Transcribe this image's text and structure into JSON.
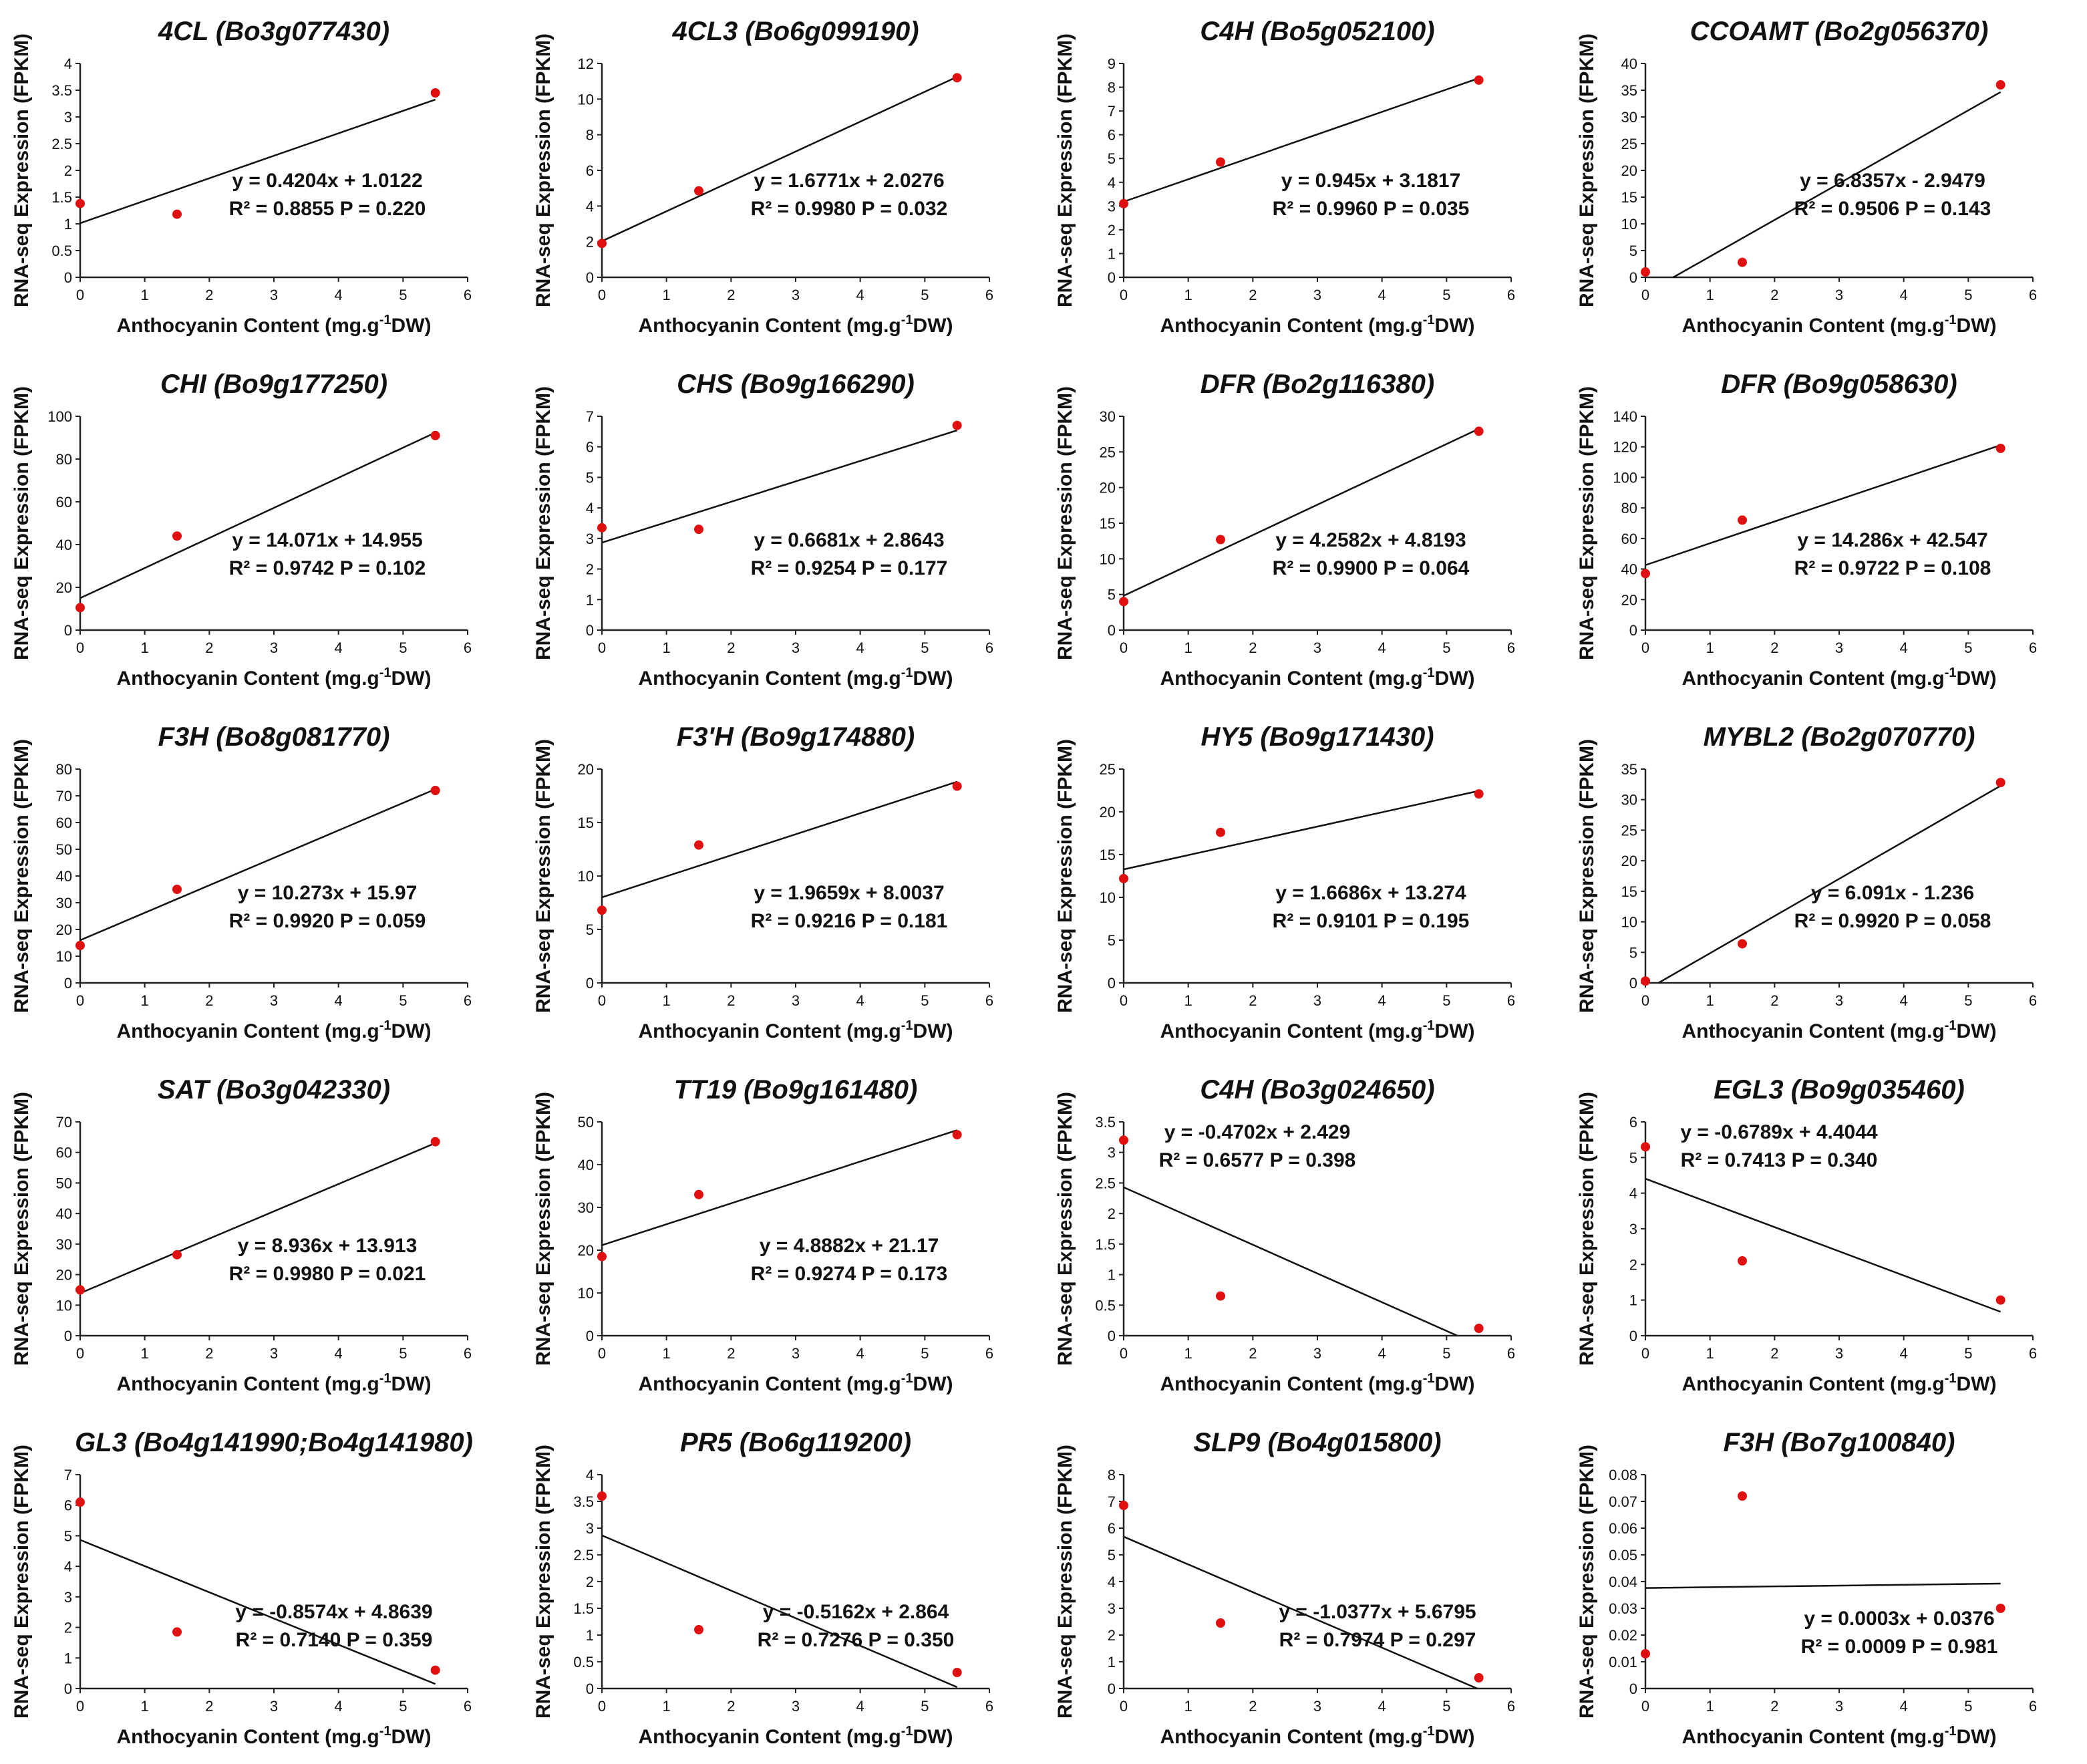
{
  "chart_data": [
    {
      "type": "scatter",
      "title": "4CL (Bo3g077430)",
      "ylabel": "RNA-seq Expression (FPKM)",
      "xlabel": "Anthocyanin Content (mg.g-1DW)",
      "xlim": [
        0,
        6
      ],
      "ylim": [
        0,
        4
      ],
      "yticks": [
        "0",
        "0.5",
        "1",
        "1.5",
        "2",
        "2.5",
        "3",
        "3.5",
        "4"
      ],
      "xticks": [
        "0",
        "1",
        "2",
        "3",
        "4",
        "5",
        "6"
      ],
      "x": [
        0,
        1.5,
        5.5
      ],
      "y": [
        1.38,
        1.18,
        3.45
      ],
      "slope": 0.4204,
      "intercept": 1.0122,
      "equation": "y = 0.4204x + 1.0122",
      "stats": "R² = 0.8855 P = 0.220"
    },
    {
      "type": "scatter",
      "title": "4CL3 (Bo6g099190)",
      "ylabel": "RNA-seq Expression (FPKM)",
      "xlabel": "Anthocyanin Content (mg.g-1DW)",
      "xlim": [
        0,
        6
      ],
      "ylim": [
        0,
        12
      ],
      "yticks": [
        "0",
        "2",
        "4",
        "6",
        "8",
        "10",
        "12"
      ],
      "xticks": [
        "0",
        "1",
        "2",
        "3",
        "4",
        "5",
        "6"
      ],
      "x": [
        0,
        1.5,
        5.5
      ],
      "y": [
        1.9,
        4.85,
        11.2
      ],
      "slope": 1.6771,
      "intercept": 2.0276,
      "equation": "y = 1.6771x + 2.0276",
      "stats": "R² = 0.9980 P = 0.032"
    },
    {
      "type": "scatter",
      "title": "C4H (Bo5g052100)",
      "ylabel": "RNA-seq Expression (FPKM)",
      "xlabel": "Anthocyanin Content (mg.g-1DW)",
      "xlim": [
        0,
        6
      ],
      "ylim": [
        0,
        9
      ],
      "yticks": [
        "0",
        "1",
        "2",
        "3",
        "4",
        "5",
        "6",
        "7",
        "8",
        "9"
      ],
      "xticks": [
        "0",
        "1",
        "2",
        "3",
        "4",
        "5",
        "6"
      ],
      "x": [
        0,
        1.5,
        5.5
      ],
      "y": [
        3.1,
        4.85,
        8.3
      ],
      "slope": 0.945,
      "intercept": 3.1817,
      "equation": "y = 0.945x + 3.1817",
      "stats": "R² = 0.9960 P = 0.035"
    },
    {
      "type": "scatter",
      "title": "CCOAMT (Bo2g056370)",
      "ylabel": "RNA-seq Expression (FPKM)",
      "xlabel": "Anthocyanin Content (mg.g-1DW)",
      "xlim": [
        0,
        6
      ],
      "ylim": [
        0,
        40
      ],
      "yticks": [
        "0",
        "5",
        "10",
        "15",
        "20",
        "25",
        "30",
        "35",
        "40"
      ],
      "xticks": [
        "0",
        "1",
        "2",
        "3",
        "4",
        "5",
        "6"
      ],
      "x": [
        0,
        1.5,
        5.5
      ],
      "y": [
        1,
        2.8,
        36
      ],
      "slope": 6.8357,
      "intercept": -2.9479,
      "equation": "y = 6.8357x - 2.9479",
      "stats": "R² = 0.9506 P = 0.143"
    },
    {
      "type": "scatter",
      "title": "CHI (Bo9g177250)",
      "ylabel": "RNA-seq Expression (FPKM)",
      "xlabel": "Anthocyanin Content (mg.g-1DW)",
      "xlim": [
        0,
        6
      ],
      "ylim": [
        0,
        100
      ],
      "yticks": [
        "0",
        "20",
        "40",
        "60",
        "80",
        "100"
      ],
      "xticks": [
        "0",
        "1",
        "2",
        "3",
        "4",
        "5",
        "6"
      ],
      "x": [
        0,
        1.5,
        5.5
      ],
      "y": [
        10.5,
        44,
        91
      ],
      "slope": 14.071,
      "intercept": 14.955,
      "equation": "y = 14.071x + 14.955",
      "stats": "R² = 0.9742 P = 0.102"
    },
    {
      "type": "scatter",
      "title": "CHS (Bo9g166290)",
      "ylabel": "RNA-seq Expression (FPKM)",
      "xlabel": "Anthocyanin Content (mg.g-1DW)",
      "xlim": [
        0,
        6
      ],
      "ylim": [
        0,
        7
      ],
      "yticks": [
        "0",
        "1",
        "2",
        "3",
        "4",
        "5",
        "6",
        "7"
      ],
      "xticks": [
        "0",
        "1",
        "2",
        "3",
        "4",
        "5",
        "6"
      ],
      "x": [
        0,
        1.5,
        5.5
      ],
      "y": [
        3.35,
        3.3,
        6.7
      ],
      "slope": 0.6681,
      "intercept": 2.8643,
      "equation": "y = 0.6681x + 2.8643",
      "stats": "R² = 0.9254 P = 0.177"
    },
    {
      "type": "scatter",
      "title": "DFR (Bo2g116380)",
      "ylabel": "RNA-seq Expression (FPKM)",
      "xlabel": "Anthocyanin Content (mg.g-1DW)",
      "xlim": [
        0,
        6
      ],
      "ylim": [
        0,
        30
      ],
      "yticks": [
        "0",
        "5",
        "10",
        "15",
        "20",
        "25",
        "30"
      ],
      "xticks": [
        "0",
        "1",
        "2",
        "3",
        "4",
        "5",
        "6"
      ],
      "x": [
        0,
        1.5,
        5.5
      ],
      "y": [
        4,
        12.7,
        27.9
      ],
      "slope": 4.2582,
      "intercept": 4.8193,
      "equation": "y = 4.2582x + 4.8193",
      "stats": "R² = 0.9900 P = 0.064"
    },
    {
      "type": "scatter",
      "title": "DFR (Bo9g058630)",
      "ylabel": "RNA-seq Expression (FPKM)",
      "xlabel": "Anthocyanin Content (mg.g-1DW)",
      "xlim": [
        0,
        6
      ],
      "ylim": [
        0,
        140
      ],
      "yticks": [
        "0",
        "20",
        "40",
        "60",
        "80",
        "100",
        "120",
        "140"
      ],
      "xticks": [
        "0",
        "1",
        "2",
        "3",
        "4",
        "5",
        "6"
      ],
      "x": [
        0,
        1.5,
        5.5
      ],
      "y": [
        37,
        72,
        119
      ],
      "slope": 14.286,
      "intercept": 42.547,
      "equation": "y = 14.286x + 42.547",
      "stats": "R² = 0.9722 P = 0.108"
    },
    {
      "type": "scatter",
      "title": "F3H (Bo8g081770)",
      "ylabel": "RNA-seq Expression (FPKM)",
      "xlabel": "Anthocyanin Content (mg.g-1DW)",
      "xlim": [
        0,
        6
      ],
      "ylim": [
        0,
        80
      ],
      "yticks": [
        "0",
        "10",
        "20",
        "30",
        "40",
        "50",
        "60",
        "70",
        "80"
      ],
      "xticks": [
        "0",
        "1",
        "2",
        "3",
        "4",
        "5",
        "6"
      ],
      "x": [
        0,
        1.5,
        5.5
      ],
      "y": [
        14,
        35,
        72
      ],
      "slope": 10.273,
      "intercept": 15.97,
      "equation": "y = 10.273x + 15.97",
      "stats": "R² = 0.9920 P = 0.059"
    },
    {
      "type": "scatter",
      "title": "F3'H (Bo9g174880)",
      "ylabel": "RNA-seq Expression (FPKM)",
      "xlabel": "Anthocyanin Content (mg.g-1DW)",
      "xlim": [
        0,
        6
      ],
      "ylim": [
        0,
        20
      ],
      "yticks": [
        "0",
        "5",
        "10",
        "15",
        "20"
      ],
      "xticks": [
        "0",
        "1",
        "2",
        "3",
        "4",
        "5",
        "6"
      ],
      "x": [
        0,
        1.5,
        5.5
      ],
      "y": [
        6.8,
        12.9,
        18.4
      ],
      "slope": 1.9659,
      "intercept": 8.0037,
      "equation": "y = 1.9659x + 8.0037",
      "stats": "R² = 0.9216 P = 0.181"
    },
    {
      "type": "scatter",
      "title": "HY5 (Bo9g171430)",
      "ylabel": "RNA-seq Expression (FPKM)",
      "xlabel": "Anthocyanin Content (mg.g-1DW)",
      "xlim": [
        0,
        6
      ],
      "ylim": [
        0,
        25
      ],
      "yticks": [
        "0",
        "5",
        "10",
        "15",
        "20",
        "25"
      ],
      "xticks": [
        "0",
        "1",
        "2",
        "3",
        "4",
        "5",
        "6"
      ],
      "x": [
        0,
        1.5,
        5.5
      ],
      "y": [
        12.2,
        17.6,
        22.1
      ],
      "slope": 1.6686,
      "intercept": 13.274,
      "equation": "y = 1.6686x + 13.274",
      "stats": "R² = 0.9101 P = 0.195"
    },
    {
      "type": "scatter",
      "title": "MYBL2 (Bo2g070770)",
      "ylabel": "RNA-seq Expression (FPKM)",
      "xlabel": "Anthocyanin Content (mg.g-1DW)",
      "xlim": [
        0,
        6
      ],
      "ylim": [
        0,
        35
      ],
      "yticks": [
        "0",
        "5",
        "10",
        "15",
        "20",
        "25",
        "30",
        "35"
      ],
      "xticks": [
        "0",
        "1",
        "2",
        "3",
        "4",
        "5",
        "6"
      ],
      "x": [
        0,
        1.5,
        5.5
      ],
      "y": [
        0.3,
        6.4,
        32.8
      ],
      "slope": 6.091,
      "intercept": -1.236,
      "equation": "y = 6.091x - 1.236",
      "stats": "R² = 0.9920 P = 0.058"
    },
    {
      "type": "scatter",
      "title": "SAT (Bo3g042330)",
      "ylabel": "RNA-seq Expression (FPKM)",
      "xlabel": "Anthocyanin Content (mg.g-1DW)",
      "xlim": [
        0,
        6
      ],
      "ylim": [
        0,
        70
      ],
      "yticks": [
        "0",
        "10",
        "20",
        "30",
        "40",
        "50",
        "60",
        "70"
      ],
      "xticks": [
        "0",
        "1",
        "2",
        "3",
        "4",
        "5",
        "6"
      ],
      "x": [
        0,
        1.5,
        5.5
      ],
      "y": [
        15,
        26.5,
        63.5
      ],
      "slope": 8.936,
      "intercept": 13.913,
      "equation": "y = 8.936x + 13.913",
      "stats": "R² = 0.9980 P = 0.021"
    },
    {
      "type": "scatter",
      "title": "TT19 (Bo9g161480)",
      "ylabel": "RNA-seq Expression (FPKM)",
      "xlabel": "Anthocyanin Content (mg.g-1DW)",
      "xlim": [
        0,
        6
      ],
      "ylim": [
        0,
        50
      ],
      "yticks": [
        "0",
        "10",
        "20",
        "30",
        "40",
        "50"
      ],
      "xticks": [
        "0",
        "1",
        "2",
        "3",
        "4",
        "5",
        "6"
      ],
      "x": [
        0,
        1.5,
        5.5
      ],
      "y": [
        18.5,
        33,
        47
      ],
      "slope": 4.8882,
      "intercept": 21.17,
      "equation": "y = 4.8882x + 21.17",
      "stats": "R² = 0.9274 P = 0.173"
    },
    {
      "type": "scatter",
      "title": "C4H (Bo3g024650)",
      "ylabel": "RNA-seq Expression (FPKM)",
      "xlabel": "Anthocyanin Content (mg.g-1DW)",
      "xlim": [
        0,
        6
      ],
      "ylim": [
        0,
        3.5
      ],
      "yticks": [
        "0",
        "0.5",
        "1",
        "1.5",
        "2",
        "2.5",
        "3",
        "3.5"
      ],
      "xticks": [
        "0",
        "1",
        "2",
        "3",
        "4",
        "5",
        "6"
      ],
      "x": [
        0,
        1.5,
        5.5
      ],
      "y": [
        3.2,
        0.65,
        0.12
      ],
      "slope": -0.4702,
      "intercept": 2.429,
      "equation": "y = -0.4702x + 2.429",
      "stats": "R² = 0.6577 P = 0.398"
    },
    {
      "type": "scatter",
      "title": "EGL3 (Bo9g035460)",
      "ylabel": "RNA-seq Expression (FPKM)",
      "xlabel": "Anthocyanin Content (mg.g-1DW)",
      "xlim": [
        0,
        6
      ],
      "ylim": [
        0,
        6
      ],
      "yticks": [
        "0",
        "1",
        "2",
        "3",
        "4",
        "5",
        "6"
      ],
      "xticks": [
        "0",
        "1",
        "2",
        "3",
        "4",
        "5",
        "6"
      ],
      "x": [
        0,
        1.5,
        5.5
      ],
      "y": [
        5.3,
        2.1,
        1
      ],
      "slope": -0.6789,
      "intercept": 4.4044,
      "equation": "y = -0.6789x + 4.4044",
      "stats": "R² = 0.7413 P = 0.340"
    },
    {
      "type": "scatter",
      "title": "GL3 (Bo4g141990;Bo4g141980)",
      "ylabel": "RNA-seq Expression (FPKM)",
      "xlabel": "Anthocyanin Content (mg.g-1DW)",
      "xlim": [
        0,
        6
      ],
      "ylim": [
        0,
        7
      ],
      "yticks": [
        "0",
        "1",
        "2",
        "3",
        "4",
        "5",
        "6",
        "7"
      ],
      "xticks": [
        "0",
        "1",
        "2",
        "3",
        "4",
        "5",
        "6"
      ],
      "x": [
        0,
        1.5,
        5.5
      ],
      "y": [
        6.1,
        1.85,
        0.6
      ],
      "slope": -0.8574,
      "intercept": 4.8639,
      "equation": "y = -0.8574x + 4.8639",
      "stats": "R² = 0.7140 P = 0.359"
    },
    {
      "type": "scatter",
      "title": "PR5 (Bo6g119200)",
      "ylabel": "RNA-seq Expression (FPKM)",
      "xlabel": "Anthocyanin Content (mg.g-1DW)",
      "xlim": [
        0,
        6
      ],
      "ylim": [
        0,
        4
      ],
      "yticks": [
        "0",
        "0.5",
        "1",
        "1.5",
        "2",
        "2.5",
        "3",
        "3.5",
        "4"
      ],
      "xticks": [
        "0",
        "1",
        "2",
        "3",
        "4",
        "5",
        "6"
      ],
      "x": [
        0,
        1.5,
        5.5
      ],
      "y": [
        3.6,
        1.1,
        0.3
      ],
      "slope": -0.5162,
      "intercept": 2.864,
      "equation": "y = -0.5162x + 2.864",
      "stats": "R² = 0.7276 P = 0.350"
    },
    {
      "type": "scatter",
      "title": "SLP9 (Bo4g015800)",
      "ylabel": "RNA-seq Expression (FPKM)",
      "xlabel": "Anthocyanin Content (mg.g-1DW)",
      "xlim": [
        0,
        6
      ],
      "ylim": [
        0,
        8
      ],
      "yticks": [
        "0",
        "1",
        "2",
        "3",
        "4",
        "5",
        "6",
        "7",
        "8"
      ],
      "xticks": [
        "0",
        "1",
        "2",
        "3",
        "4",
        "5",
        "6"
      ],
      "x": [
        0,
        1.5,
        5.5
      ],
      "y": [
        6.85,
        2.45,
        0.4
      ],
      "slope": -1.0377,
      "intercept": 5.6795,
      "equation": "y = -1.0377x + 5.6795",
      "stats": "R² = 0.7974 P = 0.297"
    },
    {
      "type": "scatter",
      "title": "F3H (Bo7g100840)",
      "ylabel": "RNA-seq Expression (FPKM)",
      "xlabel": "Anthocyanin Content (mg.g-1DW)",
      "xlim": [
        0,
        6
      ],
      "ylim": [
        0,
        0.08
      ],
      "yticks": [
        "0",
        "0.01",
        "0.02",
        "0.03",
        "0.04",
        "0.05",
        "0.06",
        "0.07",
        "0.08"
      ],
      "xticks": [
        "0",
        "1",
        "2",
        "3",
        "4",
        "5",
        "6"
      ],
      "x": [
        0,
        1.5,
        5.5
      ],
      "y": [
        0.013,
        0.072,
        0.03
      ],
      "slope": 0.0003,
      "intercept": 0.0376,
      "equation": "y = 0.0003x + 0.0376",
      "stats": "R² = 0.0009 P = 0.981"
    }
  ]
}
